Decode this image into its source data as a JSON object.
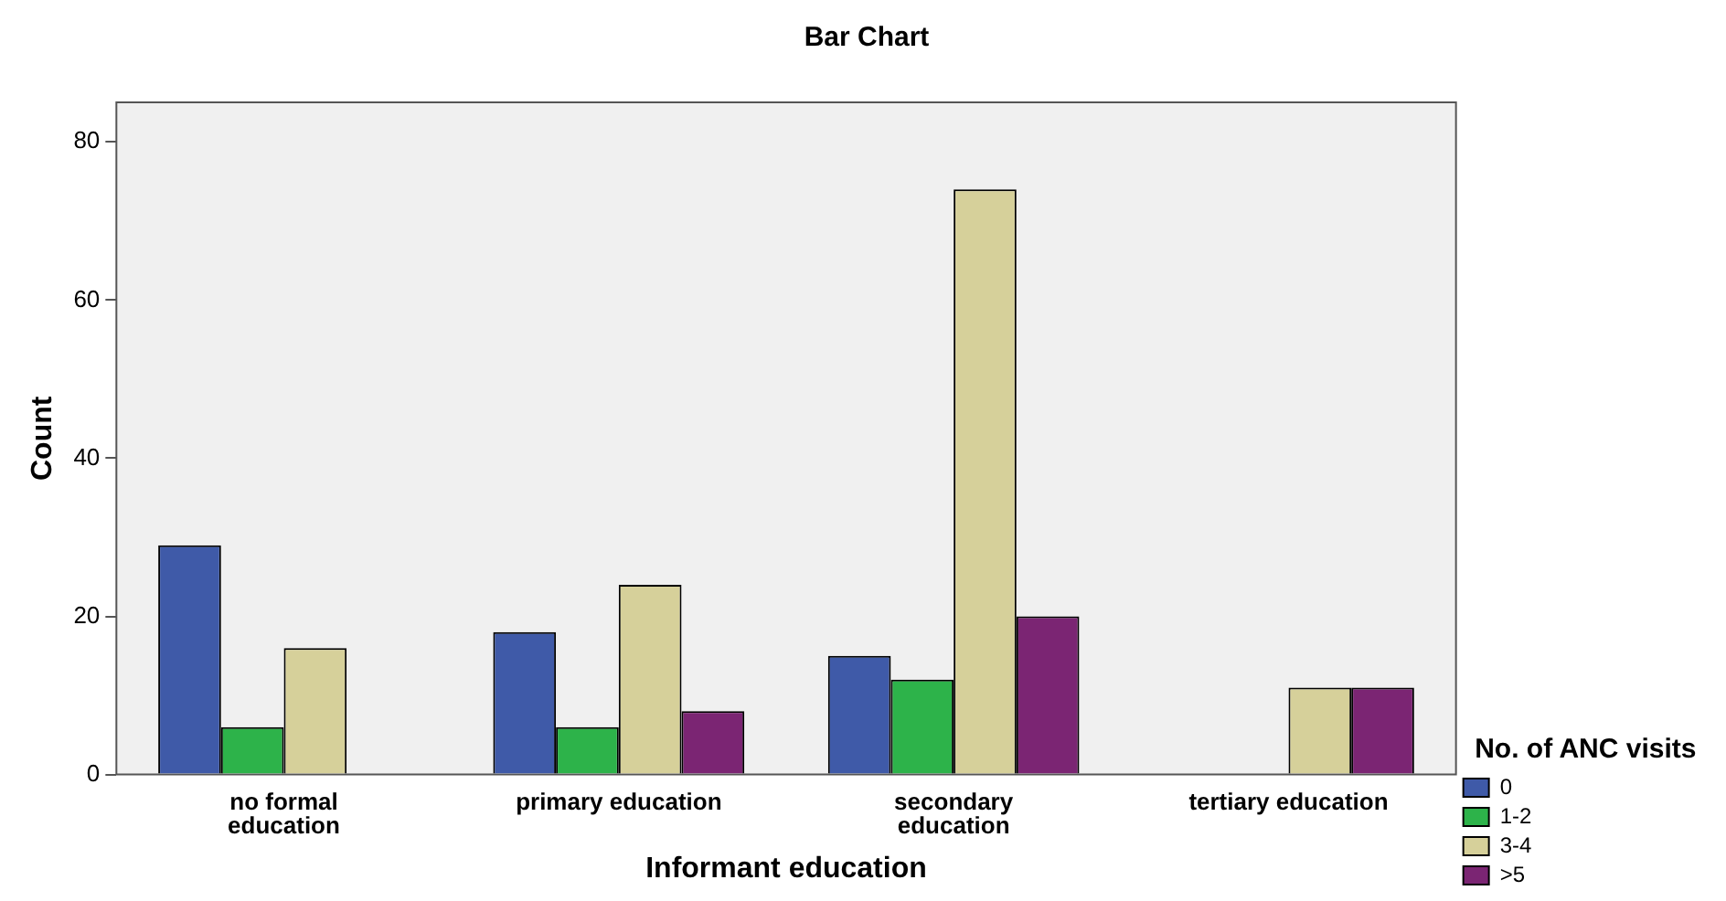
{
  "chart_data": {
    "type": "bar",
    "title": "Bar Chart",
    "xlabel": "Informant education",
    "ylabel": "Count",
    "legend_title": "No. of ANC visits",
    "categories": [
      "no formal education",
      "primary education",
      "secondary education",
      "tertiary education"
    ],
    "series": [
      {
        "name": "0",
        "color": "#3f5aa8",
        "values": [
          29,
          18,
          15,
          null
        ]
      },
      {
        "name": "1-2",
        "color": "#2db34a",
        "values": [
          6,
          6,
          12,
          null
        ]
      },
      {
        "name": "3-4",
        "color": "#d6d09a",
        "values": [
          16,
          24,
          74,
          11
        ]
      },
      {
        "name": ">5",
        "color": "#7b2573",
        "values": [
          null,
          8,
          20,
          11
        ]
      }
    ],
    "ylim": [
      0,
      85
    ],
    "yticks": [
      0,
      20,
      40,
      60,
      80
    ],
    "grid": false,
    "legend": "right"
  }
}
